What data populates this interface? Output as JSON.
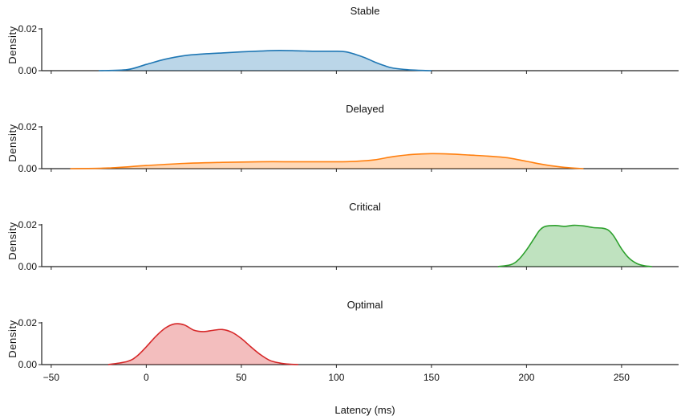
{
  "chart_data": {
    "type": "area",
    "xlabel": "Latency (ms)",
    "ylabel": "Density",
    "xlim": [
      -55,
      280
    ],
    "xticks": [
      -50,
      0,
      50,
      100,
      150,
      200,
      250
    ],
    "xtick_labels": [
      "−50",
      "0",
      "50",
      "100",
      "150",
      "200",
      "250"
    ],
    "ylim": [
      0,
      0.025
    ],
    "yticks": [
      0,
      0.02
    ],
    "ytick_labels": [
      "0.00",
      "0.02"
    ],
    "grid": false,
    "panels": [
      {
        "title": "Stable",
        "color": "#1f77b4",
        "x": [
          -25,
          -10,
          0,
          10,
          20,
          30,
          40,
          50,
          60,
          70,
          80,
          90,
          100,
          105,
          110,
          115,
          120,
          125,
          130,
          140,
          150
        ],
        "y": [
          0,
          0.0005,
          0.003,
          0.0055,
          0.0072,
          0.008,
          0.0085,
          0.009,
          0.0094,
          0.0097,
          0.0095,
          0.0093,
          0.0093,
          0.009,
          0.0078,
          0.0062,
          0.0042,
          0.0025,
          0.0012,
          0.0003,
          0
        ]
      },
      {
        "title": "Delayed",
        "color": "#ff7f0e",
        "x": [
          -40,
          -20,
          0,
          20,
          40,
          60,
          80,
          100,
          110,
          120,
          130,
          140,
          150,
          160,
          170,
          180,
          190,
          200,
          210,
          220,
          230
        ],
        "y": [
          0,
          0.0003,
          0.0015,
          0.0025,
          0.003,
          0.0033,
          0.0033,
          0.0033,
          0.0035,
          0.0042,
          0.0058,
          0.0068,
          0.0072,
          0.007,
          0.0065,
          0.006,
          0.0052,
          0.0035,
          0.0018,
          0.0006,
          0
        ]
      },
      {
        "title": "Critical",
        "color": "#2ca02c",
        "x": [
          185,
          192,
          196,
          200,
          204,
          207,
          210,
          215,
          220,
          225,
          230,
          235,
          240,
          243,
          246,
          250,
          254,
          258,
          262,
          266
        ],
        "y": [
          0,
          0.001,
          0.0035,
          0.008,
          0.0135,
          0.0175,
          0.0193,
          0.0197,
          0.0193,
          0.0198,
          0.0195,
          0.0187,
          0.0184,
          0.0175,
          0.0145,
          0.0085,
          0.004,
          0.0015,
          0.0004,
          0
        ]
      },
      {
        "title": "Optimal",
        "color": "#d62728",
        "x": [
          -20,
          -10,
          -5,
          0,
          5,
          10,
          15,
          20,
          25,
          30,
          35,
          40,
          45,
          50,
          55,
          60,
          65,
          70,
          75,
          80
        ],
        "y": [
          0,
          0.0015,
          0.004,
          0.0085,
          0.0135,
          0.0175,
          0.0195,
          0.019,
          0.0165,
          0.0158,
          0.0164,
          0.0168,
          0.0155,
          0.0125,
          0.0085,
          0.0048,
          0.002,
          0.0008,
          0.0002,
          0
        ]
      }
    ]
  }
}
